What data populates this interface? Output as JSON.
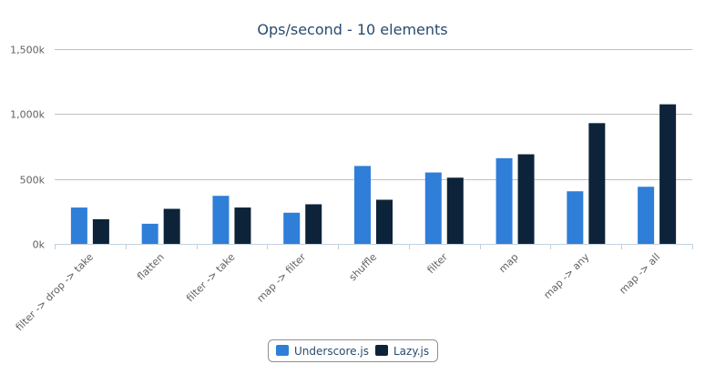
{
  "chart_data": {
    "type": "bar",
    "title": "Ops/second - 10 elements",
    "categories": [
      "filter -> drop -> take",
      "flatten",
      "filter -> take",
      "map -> filter",
      "shuffle",
      "filter",
      "map",
      "map -> any",
      "map -> all"
    ],
    "series": [
      {
        "name": "Underscore.js",
        "color": "#2f7ed8",
        "values": [
          280000,
          155000,
          370000,
          240000,
          600000,
          550000,
          660000,
          405000,
          440000
        ]
      },
      {
        "name": "Lazy.js",
        "color": "#0d233a",
        "values": [
          190000,
          270000,
          280000,
          305000,
          340000,
          510000,
          690000,
          930000,
          1075000
        ]
      }
    ],
    "ylim": [
      0,
      1500000
    ],
    "yticks": [
      0,
      500000,
      1000000,
      1500000
    ],
    "ytick_labels": [
      "0k",
      "500k",
      "1,000k",
      "1,500k"
    ],
    "grid": true,
    "legend_position": "bottom-center"
  }
}
